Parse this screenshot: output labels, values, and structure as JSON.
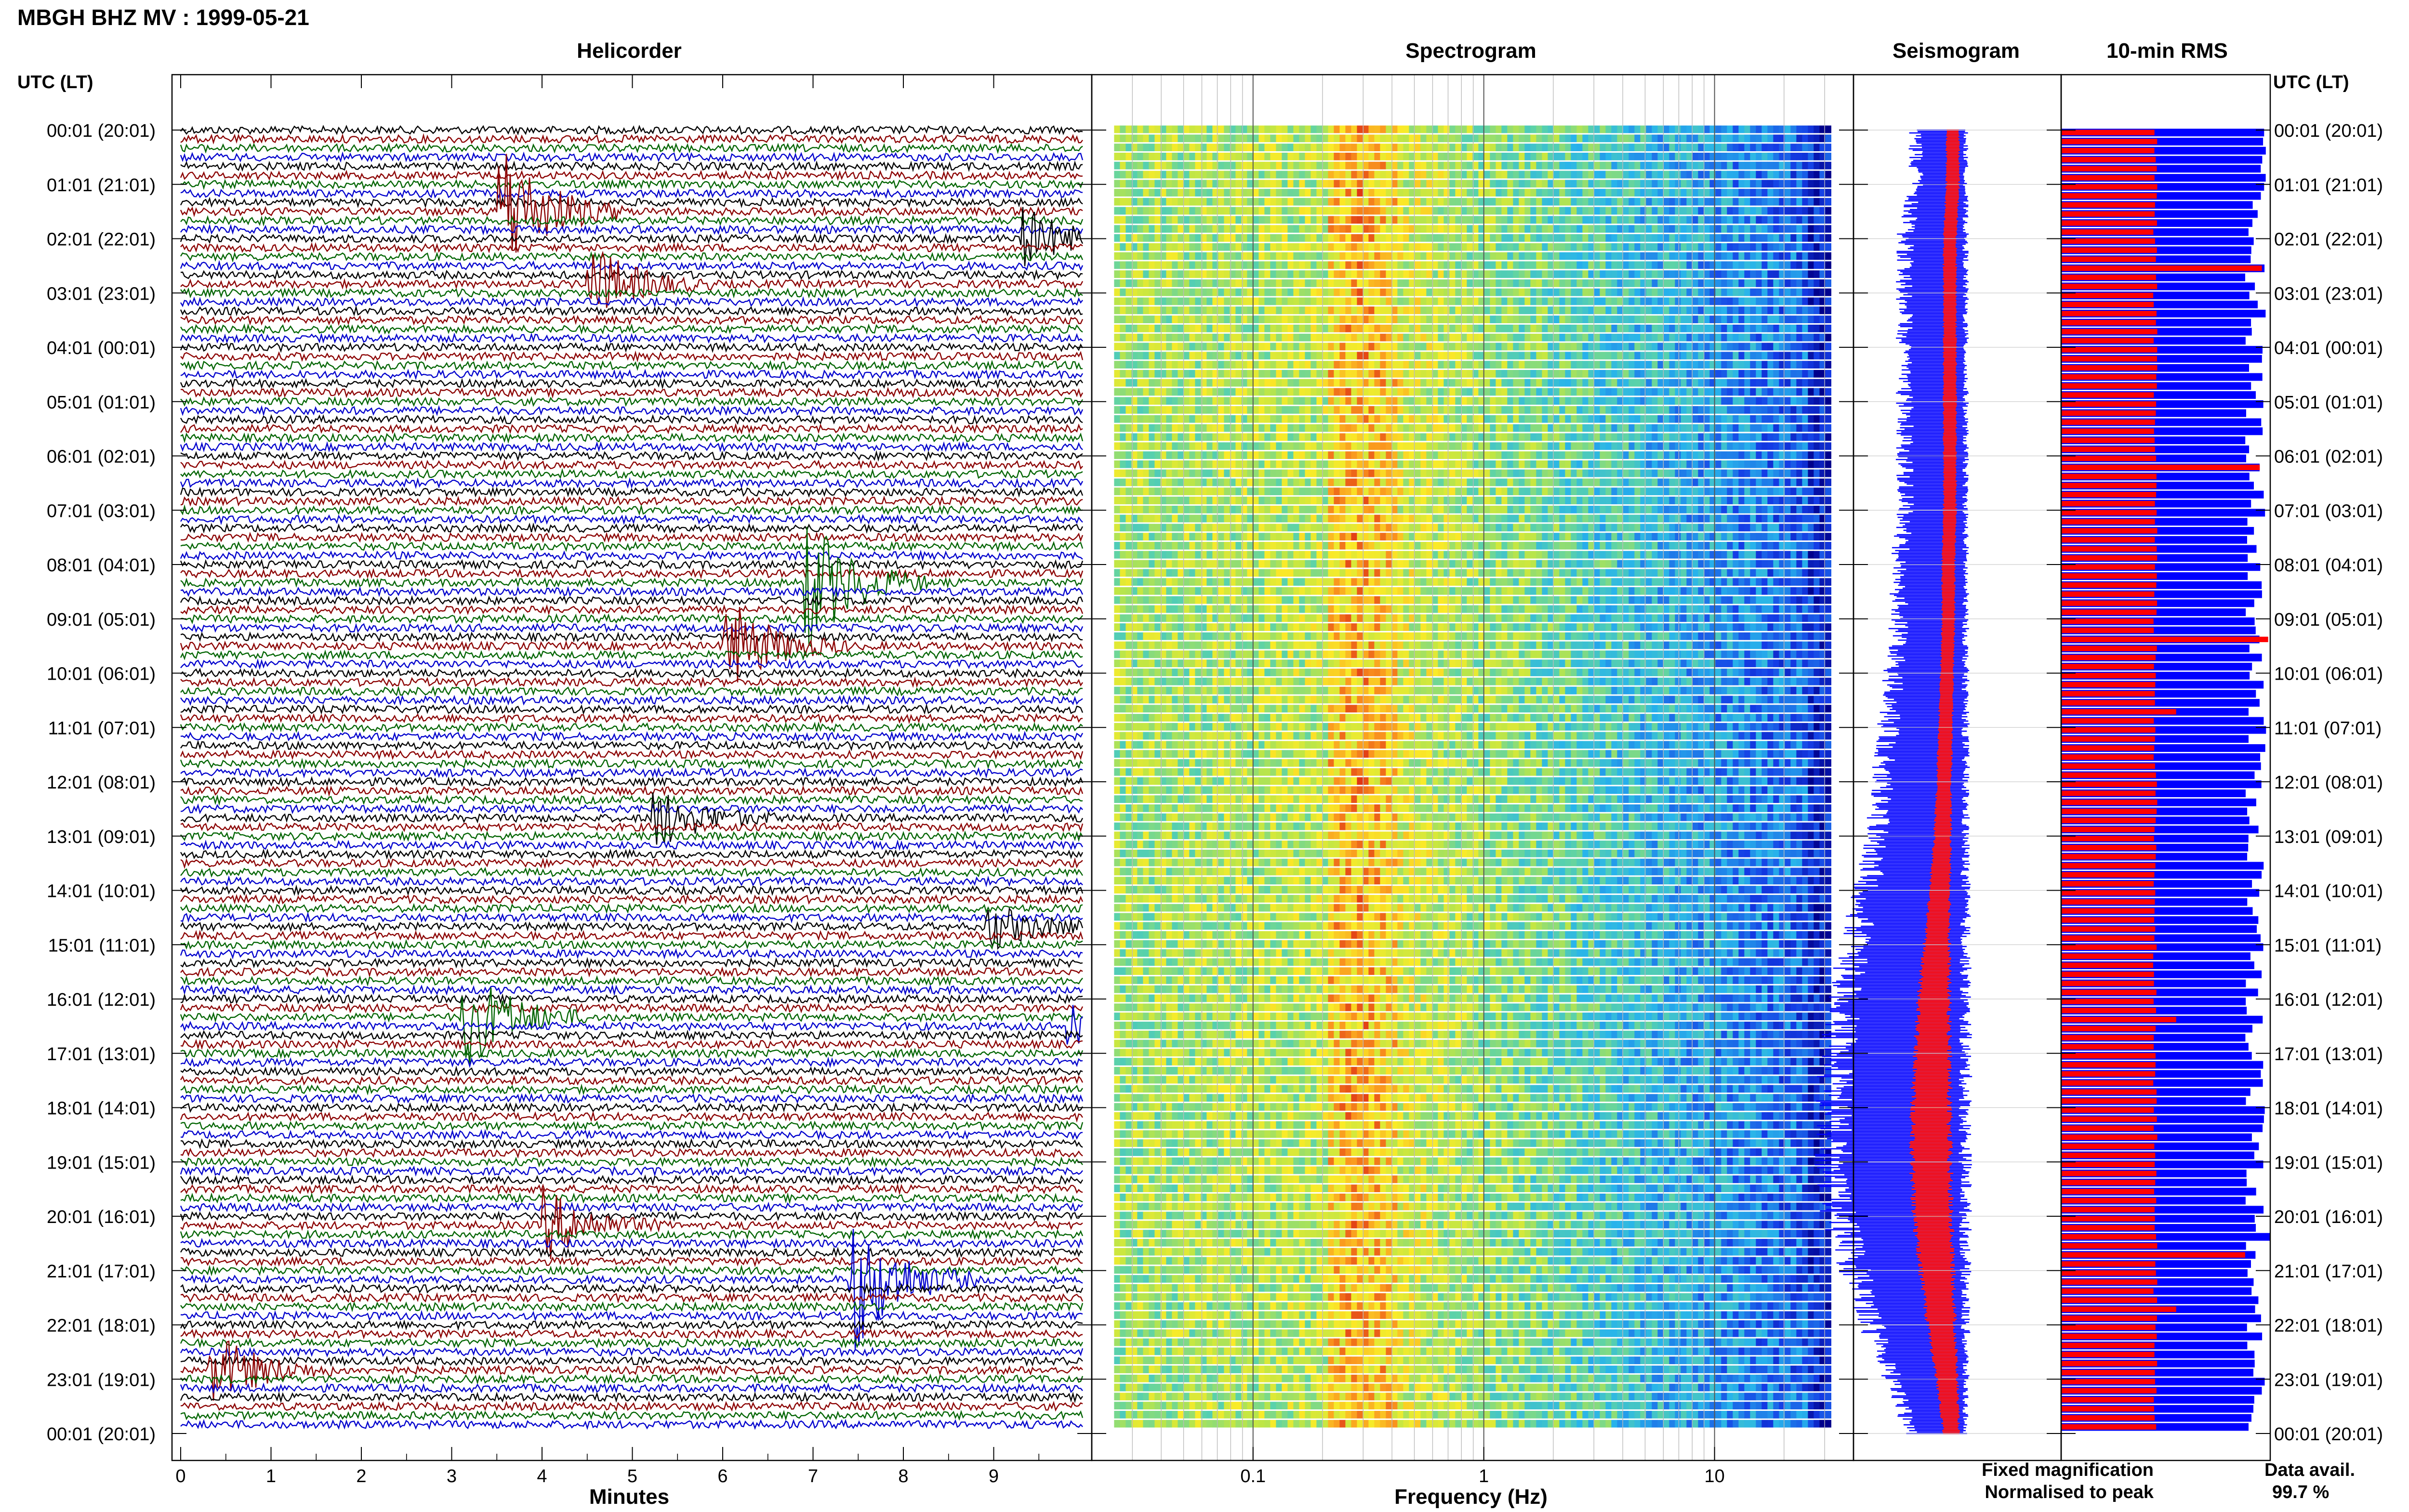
{
  "title": "MBGH BHZ MV : 1999-05-21",
  "panels": {
    "helicorder": "Helicorder",
    "spectrogram": "Spectrogram",
    "seismogram": "Seismogram",
    "rms": "10-min RMS"
  },
  "time_axis_title_left": "UTC (LT)",
  "time_axis_title_right": "UTC (LT)",
  "time_labels": [
    "00:01 (20:01)",
    "01:01 (21:01)",
    "02:01 (22:01)",
    "03:01 (23:01)",
    "04:01 (00:01)",
    "05:01 (01:01)",
    "06:01 (02:01)",
    "07:01 (03:01)",
    "08:01 (04:01)",
    "09:01 (05:01)",
    "10:01 (06:01)",
    "11:01 (07:01)",
    "12:01 (08:01)",
    "13:01 (09:01)",
    "14:01 (10:01)",
    "15:01 (11:01)",
    "16:01 (12:01)",
    "17:01 (13:01)",
    "18:01 (14:01)",
    "19:01 (15:01)",
    "20:01 (16:01)",
    "21:01 (17:01)",
    "22:01 (18:01)",
    "23:01 (19:01)",
    "00:01 (20:01)"
  ],
  "xlabel_helicorder": "Minutes",
  "xlabel_spectrogram": "Frequency (Hz)",
  "legend": {
    "fixed": "Fixed magnification",
    "normalised": "Normalised to peak",
    "fixed_color": "#1010ff",
    "normalised_color": "#ff1010"
  },
  "data_avail_label": "Data avail.",
  "data_avail_value": "99.7 %",
  "colors": {
    "trace_cycle": [
      "#000000",
      "#8b0000",
      "#006400",
      "#0000cd"
    ],
    "fixed": "#0000ff",
    "normalised": "#ff0000"
  },
  "chart_data": {
    "type": "helicorder-spectrogram",
    "helicorder": {
      "x_ticks": [
        "0",
        "1",
        "2",
        "3",
        "4",
        "5",
        "6",
        "7",
        "8",
        "9"
      ],
      "xlim": [
        0,
        10
      ],
      "rows_per_hour": 6,
      "hours": 24,
      "events": [
        {
          "hour": 1.5,
          "minute": 3.5,
          "amp": 3.0,
          "color": "#8b0000"
        },
        {
          "hour": 2.8,
          "minute": 4.5,
          "amp": 1.6,
          "color": "#006400"
        },
        {
          "hour": 2.0,
          "minute": 9.3,
          "amp": 1.2,
          "color": "#8b0000"
        },
        {
          "hour": 8.3,
          "minute": 6.9,
          "amp": 2.8,
          "color": "#8b0000"
        },
        {
          "hour": 9.5,
          "minute": 6.0,
          "amp": 2.0,
          "color": "#006400"
        },
        {
          "hour": 12.7,
          "minute": 5.2,
          "amp": 1.3,
          "color": "#000000"
        },
        {
          "hour": 14.7,
          "minute": 8.9,
          "amp": 1.0,
          "color": "#000000"
        },
        {
          "hour": 16.3,
          "minute": 3.1,
          "amp": 2.2,
          "color": "#006400"
        },
        {
          "hour": 16.5,
          "minute": 9.8,
          "amp": 1.2,
          "color": "#006400"
        },
        {
          "hour": 20.1,
          "minute": 4.0,
          "amp": 1.4,
          "color": "#0000cd"
        },
        {
          "hour": 21.1,
          "minute": 7.4,
          "amp": 3.0,
          "color": "#000000"
        },
        {
          "hour": 22.8,
          "minute": 0.3,
          "amp": 1.6,
          "color": "#006400"
        }
      ]
    },
    "spectrogram": {
      "x_scale": "log",
      "xlim": [
        0.02,
        40
      ],
      "x_ticks": [
        "0.1",
        "1",
        "10"
      ],
      "x_tick_values": [
        0.1,
        1,
        10
      ],
      "peak_band_hz": [
        0.2,
        0.4
      ],
      "rows": 144
    },
    "seismogram": {
      "series": [
        {
          "name": "Fixed magnification",
          "color": "#0000ff"
        },
        {
          "name": "Normalised to peak",
          "color": "#ff0000"
        }
      ],
      "fixed_amplitude_by_hour": [
        0.45,
        0.45,
        0.55,
        0.55,
        0.55,
        0.55,
        0.55,
        0.55,
        0.6,
        0.6,
        0.65,
        0.7,
        0.75,
        0.8,
        0.9,
        1.0,
        1.1,
        1.15,
        1.2,
        1.2,
        1.15,
        1.0,
        0.85,
        0.65,
        0.5
      ],
      "normalised_amplitude_by_hour": [
        0.15,
        0.15,
        0.15,
        0.15,
        0.15,
        0.15,
        0.15,
        0.15,
        0.15,
        0.15,
        0.15,
        0.17,
        0.18,
        0.22,
        0.3,
        0.38,
        0.48,
        0.55,
        0.6,
        0.62,
        0.6,
        0.52,
        0.42,
        0.3,
        0.2
      ]
    },
    "rms": {
      "type": "bar",
      "series": [
        {
          "name": "Fixed magnification",
          "color": "#0000ff"
        },
        {
          "name": "Normalised to peak",
          "color": "#ff0000"
        }
      ],
      "normalised_level": 0.45,
      "fixed_level_min": 0.88,
      "fixed_level_max": 0.98,
      "spikes": [
        {
          "row": 15,
          "series": "normalised",
          "value": 0.96
        },
        {
          "row": 37,
          "series": "normalised",
          "value": 0.95
        },
        {
          "row": 56,
          "series": "normalised",
          "value": 0.99
        },
        {
          "row": 64,
          "series": "normalised",
          "value": 0.55
        },
        {
          "row": 98,
          "series": "normalised",
          "value": 0.55
        },
        {
          "row": 124,
          "series": "normalised",
          "value": 0.88
        },
        {
          "row": 122,
          "series": "fixed",
          "value": 1.0
        },
        {
          "row": 130,
          "series": "normalised",
          "value": 0.55
        }
      ]
    }
  }
}
